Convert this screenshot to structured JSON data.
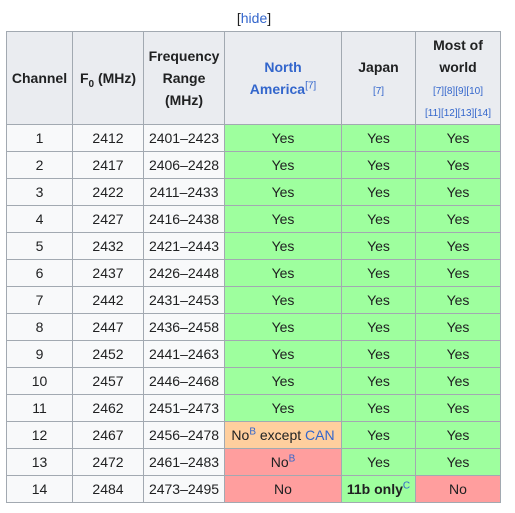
{
  "hide_control": {
    "open_bracket": "[",
    "label": "hide",
    "close_bracket": "]"
  },
  "headers": {
    "channel": "Channel",
    "f0_base": "F",
    "f0_sub": "0",
    "f0_unit": " (MHz)",
    "freq_line1": "Frequency",
    "freq_line2": "Range",
    "freq_line3": "(MHz)",
    "na_line1": "North",
    "na_line2": "America",
    "na_ref": "[7]",
    "jp_label": "Japan",
    "jp_ref": "[7]",
    "world_line1": "Most of",
    "world_line2": "world",
    "world_refs_line1": [
      "[7]",
      "[8]",
      "[9]",
      "[10]"
    ],
    "world_refs_line2": [
      "[11]",
      "[12]",
      "[13]",
      "[14]"
    ]
  },
  "rows": [
    {
      "channel": "1",
      "f0": "2412",
      "range": "2401–2423",
      "na": "Yes",
      "jp": "Yes",
      "world": "Yes"
    },
    {
      "channel": "2",
      "f0": "2417",
      "range": "2406–2428",
      "na": "Yes",
      "jp": "Yes",
      "world": "Yes"
    },
    {
      "channel": "3",
      "f0": "2422",
      "range": "2411–2433",
      "na": "Yes",
      "jp": "Yes",
      "world": "Yes"
    },
    {
      "channel": "4",
      "f0": "2427",
      "range": "2416–2438",
      "na": "Yes",
      "jp": "Yes",
      "world": "Yes"
    },
    {
      "channel": "5",
      "f0": "2432",
      "range": "2421–2443",
      "na": "Yes",
      "jp": "Yes",
      "world": "Yes"
    },
    {
      "channel": "6",
      "f0": "2437",
      "range": "2426–2448",
      "na": "Yes",
      "jp": "Yes",
      "world": "Yes"
    },
    {
      "channel": "7",
      "f0": "2442",
      "range": "2431–2453",
      "na": "Yes",
      "jp": "Yes",
      "world": "Yes"
    },
    {
      "channel": "8",
      "f0": "2447",
      "range": "2436–2458",
      "na": "Yes",
      "jp": "Yes",
      "world": "Yes"
    },
    {
      "channel": "9",
      "f0": "2452",
      "range": "2441–2463",
      "na": "Yes",
      "jp": "Yes",
      "world": "Yes"
    },
    {
      "channel": "10",
      "f0": "2457",
      "range": "2446–2468",
      "na": "Yes",
      "jp": "Yes",
      "world": "Yes"
    },
    {
      "channel": "11",
      "f0": "2462",
      "range": "2451–2473",
      "na": "Yes",
      "jp": "Yes",
      "world": "Yes"
    },
    {
      "channel": "12",
      "f0": "2467",
      "range": "2456–2478",
      "na_pre": "No",
      "na_note": "B",
      "na_mid": " except ",
      "na_link": "CAN",
      "jp": "Yes",
      "world": "Yes"
    },
    {
      "channel": "13",
      "f0": "2472",
      "range": "2461–2483",
      "na_pre": "No",
      "na_note": "B",
      "jp": "Yes",
      "world": "Yes"
    },
    {
      "channel": "14",
      "f0": "2484",
      "range": "2473–2495",
      "na": "No",
      "jp_pre": "11b only",
      "jp_note": "C",
      "world": "No"
    }
  ],
  "colors": {
    "yes_bg": "#9eff9e",
    "no_bg": "#ff9e9e",
    "partial_bg": "#ffcf9e",
    "header_bg": "#eaecf0",
    "link": "#3366cc",
    "border": "#a2a9b1"
  }
}
